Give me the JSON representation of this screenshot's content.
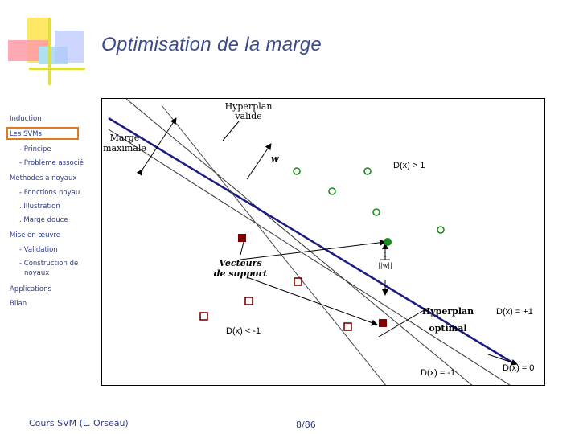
{
  "slide": {
    "title": "Optimisation de la marge",
    "footer_left": "Cours SVM (L. Orseau)",
    "page": "8/86"
  },
  "nav": {
    "items": [
      "Induction",
      "Les SVMs",
      "- Principe",
      "- Problème associé",
      "Méthodes à noyaux",
      "- Fonctions noyau",
      ". Illustration",
      ". Marge douce",
      "Mise en œuvre",
      "- Validation",
      "- Construction de",
      "noyaux",
      "Applications",
      "Bilan"
    ]
  },
  "figure": {
    "hyperplan_valide": [
      "Hyperplan",
      "valide"
    ],
    "marge_maximale": [
      "Marge",
      "maximale"
    ],
    "w_label": "w",
    "vecteurs_support": [
      "Vecteurs",
      "de support"
    ],
    "hyperplan_optimal": [
      "Hyperplan",
      "optimal"
    ],
    "d_gt_1": "D(x) > 1",
    "d_lt_m1": "D(x) < -1",
    "d_eq_p1": "D(x) = +1",
    "d_eq_0": "D(x) = 0",
    "d_eq_m1": "D(x) = -1",
    "fraction_num": "1",
    "fraction_den": "||w||"
  },
  "colors": {
    "title": "#3a4a8c",
    "nav_text": "#2b3a8c",
    "active_border": "#e07a1f",
    "hyperplane": "#1a1a80",
    "class_pos": "#1a8a1a",
    "class_neg": "#800000"
  }
}
